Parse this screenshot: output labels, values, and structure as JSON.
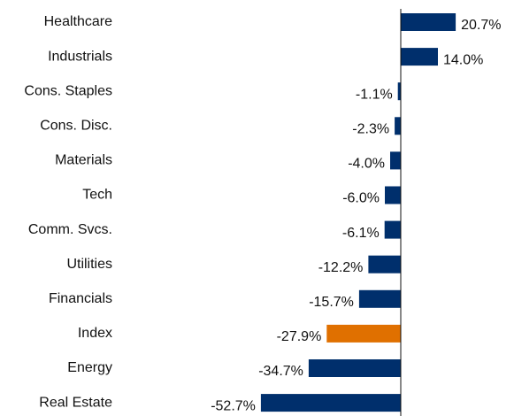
{
  "chart_data": {
    "type": "barh",
    "categories": [
      "Healthcare",
      "Industrials",
      "Cons. Staples",
      "Cons. Disc.",
      "Materials",
      "Tech",
      "Comm. Svcs.",
      "Utilities",
      "Financials",
      "Index",
      "Energy",
      "Real Estate"
    ],
    "values": [
      20.7,
      14.0,
      -1.1,
      -2.3,
      -4.0,
      -6.0,
      -6.1,
      -12.2,
      -15.7,
      -27.9,
      -34.7,
      -52.7
    ],
    "value_labels": [
      "20.7%",
      "14.0%",
      "-1.1%",
      "-2.3%",
      "-4.0%",
      "-6.0%",
      "-6.1%",
      "-12.2%",
      "-15.7%",
      "-27.9%",
      "-34.7%",
      "-52.7%"
    ],
    "colors": [
      "#002f6c",
      "#002f6c",
      "#002f6c",
      "#002f6c",
      "#002f6c",
      "#002f6c",
      "#002f6c",
      "#002f6c",
      "#002f6c",
      "#e07000",
      "#002f6c",
      "#002f6c"
    ],
    "xlim": [
      -55,
      35
    ]
  }
}
